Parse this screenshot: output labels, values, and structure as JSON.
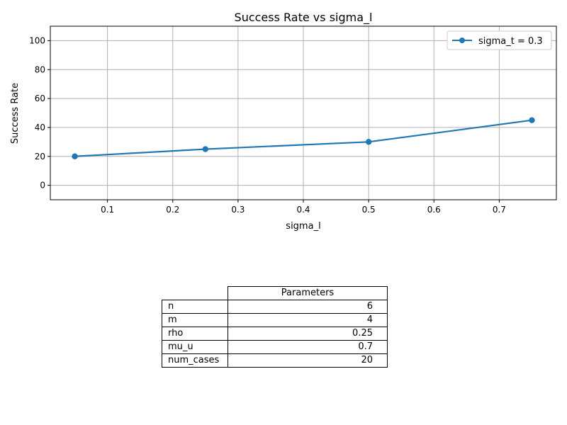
{
  "chart_data": {
    "type": "line",
    "title": "Success Rate vs sigma_l",
    "xlabel": "sigma_l",
    "ylabel": "Success Rate",
    "x": [
      0.05,
      0.25,
      0.5,
      0.75
    ],
    "series": [
      {
        "name": "sigma_t = 0.3",
        "values": [
          20,
          25,
          30,
          45
        ],
        "color": "#1f77b4"
      }
    ],
    "xlim": [
      0.0125,
      0.7875
    ],
    "ylim": [
      -10,
      110
    ],
    "xticks": [
      0.1,
      0.2,
      0.3,
      0.4,
      0.5,
      0.6,
      0.7
    ],
    "yticks": [
      0,
      20,
      40,
      60,
      80,
      100
    ],
    "grid": true,
    "legend_position": "top-right"
  },
  "table": {
    "column_header": "Parameters",
    "rows": [
      {
        "label": "n",
        "value": "6"
      },
      {
        "label": "m",
        "value": "4"
      },
      {
        "label": "rho",
        "value": "0.25"
      },
      {
        "label": "mu_u",
        "value": "0.7"
      },
      {
        "label": "num_cases",
        "value": "20"
      }
    ]
  }
}
